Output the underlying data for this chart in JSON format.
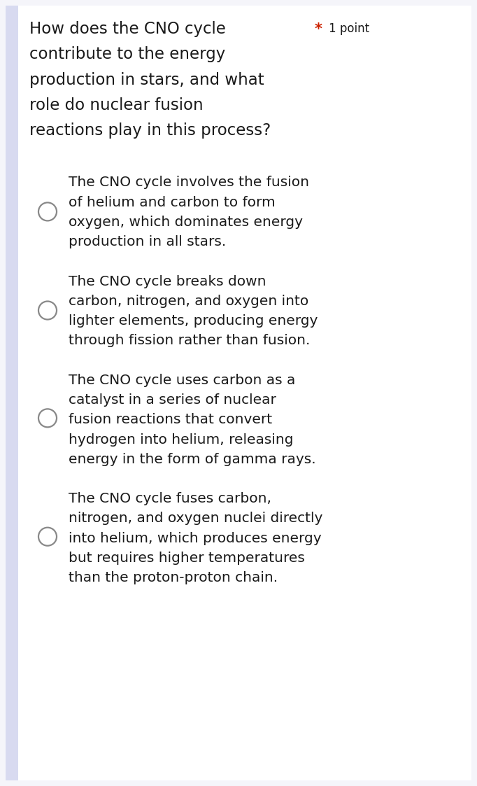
{
  "bg_color": "#f5f5fa",
  "card_color": "#ffffff",
  "question_lines": [
    "How does the CNO cycle",
    "contribute to the energy",
    "production in stars, and what",
    "role do nuclear fusion",
    "reactions play in this process?"
  ],
  "point_label": "1 point",
  "star_color": "#cc2200",
  "options": [
    [
      "The CNO cycle involves the fusion",
      "of helium and carbon to form",
      "oxygen, which dominates energy",
      "production in all stars."
    ],
    [
      "The CNO cycle breaks down",
      "carbon, nitrogen, and oxygen into",
      "lighter elements, producing energy",
      "through fission rather than fusion."
    ],
    [
      "The CNO cycle uses carbon as a",
      "catalyst in a series of nuclear",
      "fusion reactions that convert",
      "hydrogen into helium, releasing",
      "energy in the form of gamma rays."
    ],
    [
      "The CNO cycle fuses carbon,",
      "nitrogen, and oxygen nuclei directly",
      "into helium, which produces energy",
      "but requires higher temperatures",
      "than the proton-proton chain."
    ]
  ],
  "question_fontsize": 16.5,
  "option_fontsize": 14.5,
  "point_fontsize": 12,
  "text_color": "#1a1a1a",
  "circle_edge_color": "#888888",
  "left_bar_color": "#d8daf0",
  "fig_width": 6.82,
  "fig_height": 11.23,
  "dpi": 100
}
